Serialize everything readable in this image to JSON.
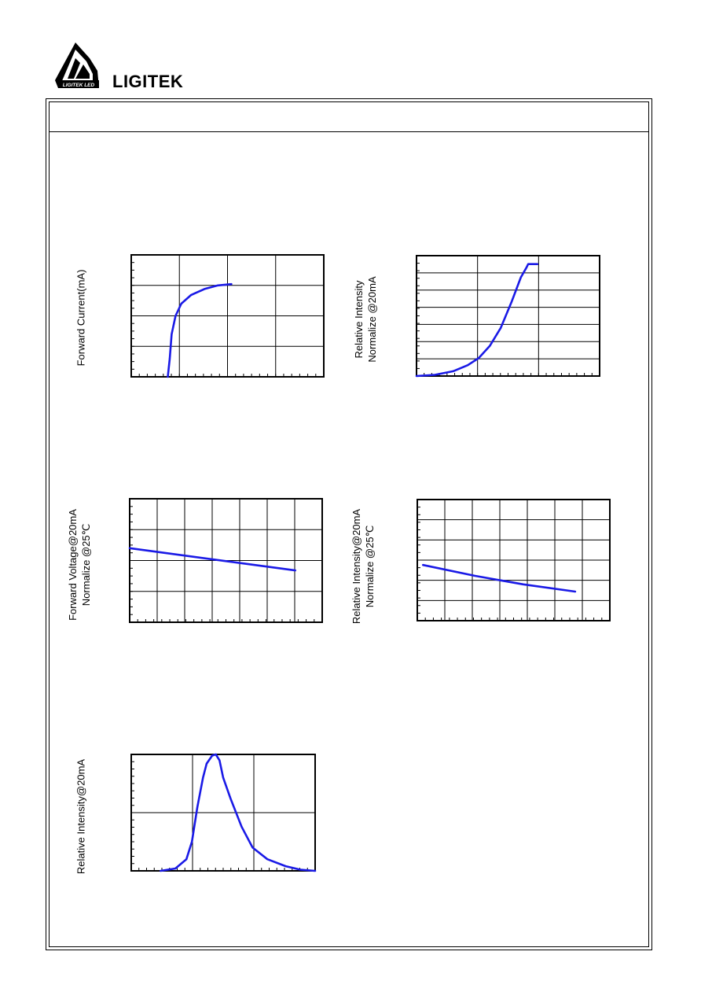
{
  "header": {
    "brand": "LIGITEK",
    "logo_text": "LIGITEK LED"
  },
  "colors": {
    "curve": "#1a1ae6",
    "frame": "#000000"
  },
  "charts": [
    {
      "id": "forward-current-vs-voltage",
      "y_label_lines": [
        "Forward Current(mA)"
      ],
      "chart_data": {
        "type": "line",
        "grid": true,
        "v_divisions": 4,
        "h_divisions": 4,
        "points": [
          [
            0.19,
            0.0
          ],
          [
            0.2,
            0.15
          ],
          [
            0.21,
            0.35
          ],
          [
            0.23,
            0.5
          ],
          [
            0.26,
            0.6
          ],
          [
            0.31,
            0.67
          ],
          [
            0.38,
            0.72
          ],
          [
            0.45,
            0.75
          ],
          [
            0.52,
            0.76
          ]
        ]
      }
    },
    {
      "id": "relative-intensity-vs-current",
      "y_label_lines": [
        "Relative Intensity",
        "Normalize @20mA"
      ],
      "chart_data": {
        "type": "line",
        "grid": true,
        "v_divisions": 3,
        "h_divisions": 7,
        "points": [
          [
            0.0,
            0.0
          ],
          [
            0.1,
            0.01
          ],
          [
            0.2,
            0.04
          ],
          [
            0.28,
            0.09
          ],
          [
            0.34,
            0.15
          ],
          [
            0.4,
            0.25
          ],
          [
            0.46,
            0.4
          ],
          [
            0.52,
            0.62
          ],
          [
            0.57,
            0.82
          ],
          [
            0.6,
            0.9
          ],
          [
            0.61,
            0.93
          ],
          [
            0.66,
            0.93
          ]
        ]
      }
    },
    {
      "id": "forward-voltage-vs-temperature",
      "y_label_lines": [
        "Forward Voltage@20mA",
        "Normalize @25℃"
      ],
      "chart_data": {
        "type": "line",
        "grid": true,
        "v_divisions": 7,
        "h_divisions": 4,
        "points": [
          [
            0.0,
            0.6
          ],
          [
            0.86,
            0.42
          ]
        ]
      }
    },
    {
      "id": "relative-intensity-vs-temperature",
      "y_label_lines": [
        "Relative Intensity@20mA",
        "Normalize @25℃"
      ],
      "chart_data": {
        "type": "line",
        "grid": true,
        "v_divisions": 7,
        "h_divisions": 6,
        "points": [
          [
            0.03,
            0.46
          ],
          [
            0.3,
            0.37
          ],
          [
            0.55,
            0.3
          ],
          [
            0.82,
            0.24
          ]
        ]
      }
    },
    {
      "id": "relative-intensity-vs-wavelength",
      "y_label_lines": [
        "Relative Intensity@20mA"
      ],
      "chart_data": {
        "type": "line",
        "grid": true,
        "v_divisions": 3,
        "h_divisions": 2,
        "points": [
          [
            0.16,
            0.0
          ],
          [
            0.24,
            0.02
          ],
          [
            0.3,
            0.1
          ],
          [
            0.33,
            0.25
          ],
          [
            0.36,
            0.55
          ],
          [
            0.39,
            0.8
          ],
          [
            0.41,
            0.92
          ],
          [
            0.44,
            0.99
          ],
          [
            0.46,
            1.0
          ],
          [
            0.48,
            0.95
          ],
          [
            0.5,
            0.8
          ],
          [
            0.54,
            0.62
          ],
          [
            0.6,
            0.38
          ],
          [
            0.66,
            0.2
          ],
          [
            0.74,
            0.1
          ],
          [
            0.84,
            0.04
          ],
          [
            0.92,
            0.01
          ],
          [
            1.0,
            0.0
          ]
        ]
      }
    }
  ]
}
